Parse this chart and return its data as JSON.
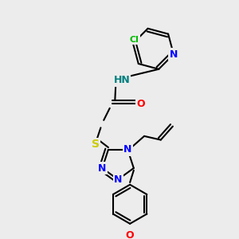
{
  "bg_color": "#ececec",
  "bond_color": "#000000",
  "atom_colors": {
    "N": "#0000ff",
    "O": "#ff0000",
    "S": "#cccc00",
    "Cl": "#00bb00",
    "HN": "#008080",
    "C": "#000000"
  },
  "bond_width": 1.5,
  "font_size_atom": 9
}
